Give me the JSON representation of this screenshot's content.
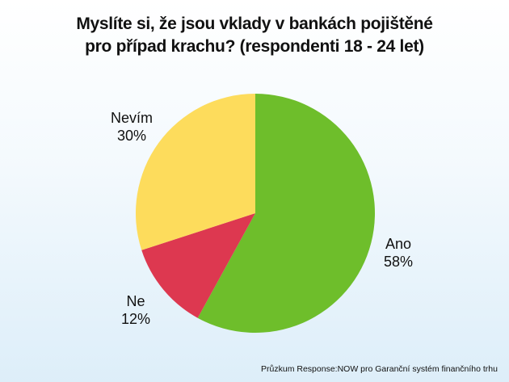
{
  "chart_data": {
    "type": "pie",
    "title_lines": [
      "Myslíte si, že jsou vklady v bankách pojištěné",
      "pro případ krachu? (respondenti 18 - 24 let)"
    ],
    "slices": [
      {
        "label": "Ano",
        "value": 58,
        "display": "58%",
        "color": "#6ebe2b"
      },
      {
        "label": "Ne",
        "value": 12,
        "display": "12%",
        "color": "#dd3850"
      },
      {
        "label": "Nevím",
        "value": 30,
        "display": "30%",
        "color": "#fddc5c"
      }
    ],
    "source": "Průzkum Response:NOW pro Garanční systém finančního trhu"
  }
}
